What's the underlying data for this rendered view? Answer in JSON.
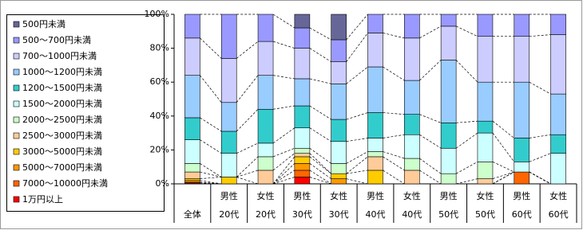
{
  "chart_data": {
    "type": "stacked_bar",
    "categories": [
      [
        "全体"
      ],
      [
        "男性",
        "20代"
      ],
      [
        "女性",
        "20代"
      ],
      [
        "男性",
        "30代"
      ],
      [
        "女性",
        "30代"
      ],
      [
        "男性",
        "40代"
      ],
      [
        "女性",
        "40代"
      ],
      [
        "男性",
        "50代"
      ],
      [
        "女性",
        "50代"
      ],
      [
        "男性",
        "60代"
      ],
      [
        "女性",
        "60代"
      ]
    ],
    "series": [
      {
        "name": "500円未満",
        "color": "#666699",
        "values": [
          0,
          0,
          0,
          8,
          15,
          0,
          0,
          0,
          0,
          0,
          0
        ]
      },
      {
        "name": "500～700円未満",
        "color": "#9999ff",
        "values": [
          14,
          26,
          16,
          12,
          13,
          11,
          14,
          7,
          13,
          13,
          12
        ]
      },
      {
        "name": "700～1000円未満",
        "color": "#ccccff",
        "values": [
          22,
          26,
          20,
          18,
          13,
          20,
          25,
          20,
          27,
          27,
          35
        ]
      },
      {
        "name": "1000～1200円未満",
        "color": "#99ccff",
        "values": [
          25,
          17,
          20,
          16,
          21,
          27,
          20,
          37,
          23,
          33,
          24
        ]
      },
      {
        "name": "1200～1500円未満",
        "color": "#33cccc",
        "values": [
          13,
          13,
          20,
          13,
          13,
          15,
          12,
          15,
          7,
          14,
          11
        ]
      },
      {
        "name": "1500～2000円未満",
        "color": "#ccffff",
        "values": [
          14,
          14,
          8,
          12,
          13,
          8,
          14,
          15,
          17,
          6,
          18
        ]
      },
      {
        "name": "2000～2500円未満",
        "color": "#ccffcc",
        "values": [
          5,
          0,
          8,
          3,
          6,
          3,
          7,
          6,
          10,
          0,
          0
        ]
      },
      {
        "name": "2500～3000円未満",
        "color": "#ffcc99",
        "values": [
          4,
          0,
          8,
          2,
          0,
          8,
          8,
          0,
          3,
          0,
          0
        ]
      },
      {
        "name": "3000～5000円未満",
        "color": "#ffcc00",
        "values": [
          1,
          4,
          0,
          4,
          3,
          8,
          0,
          0,
          0,
          0,
          0
        ]
      },
      {
        "name": "5000～7000円未満",
        "color": "#ff9900",
        "values": [
          1,
          0,
          0,
          4,
          3,
          0,
          0,
          0,
          0,
          0,
          0
        ]
      },
      {
        "name": "7000～10000円未満",
        "color": "#ff6600",
        "values": [
          0.5,
          0,
          0,
          4,
          0,
          0,
          0,
          0,
          0,
          7,
          0
        ]
      },
      {
        "name": "1万円以上",
        "color": "#ff0000",
        "values": [
          0.5,
          0,
          0,
          4,
          0,
          0,
          0,
          0,
          0,
          0,
          0
        ]
      }
    ],
    "ylim": [
      0,
      100
    ],
    "yticks": [
      {
        "value": 0,
        "label": "0%"
      },
      {
        "value": 20,
        "label": "20%"
      },
      {
        "value": 40,
        "label": "40%"
      },
      {
        "value": 60,
        "label": "60%"
      },
      {
        "value": 80,
        "label": "80%"
      },
      {
        "value": 100,
        "label": "100%"
      }
    ]
  }
}
